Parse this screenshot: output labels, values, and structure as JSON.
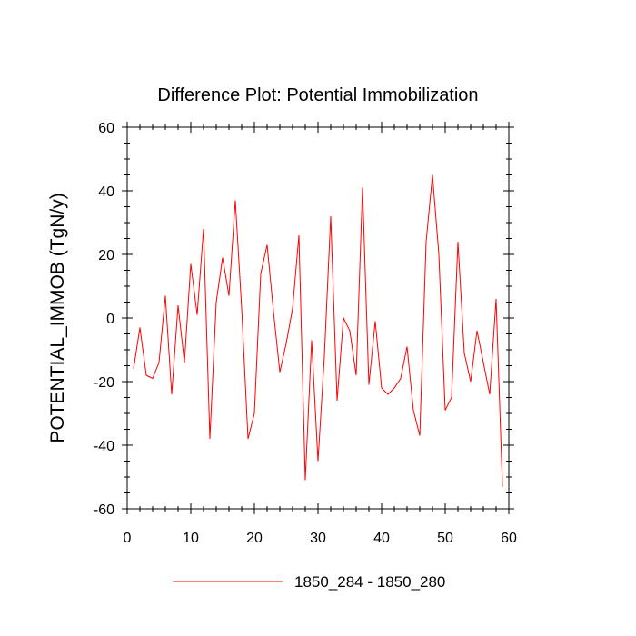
{
  "chart_data": {
    "type": "line",
    "title": "Difference Plot: Potential Immobilization",
    "xlabel": "",
    "ylabel": "POTENTIAL_IMMOB  (TgN/y)",
    "xlim": [
      0,
      60
    ],
    "ylim": [
      -60,
      60
    ],
    "xticks": [
      0,
      10,
      20,
      30,
      40,
      50,
      60
    ],
    "yticks": [
      -60,
      -40,
      -20,
      0,
      20,
      40,
      60
    ],
    "xtick_labels": [
      "0",
      "10",
      "20",
      "30",
      "40",
      "50",
      "60"
    ],
    "ytick_labels": [
      "-60",
      "-40",
      "-20",
      "0",
      "20",
      "40",
      "60"
    ],
    "grid": false,
    "legend_position": "bottom-center",
    "series": [
      {
        "name": "1850_284 - 1850_280",
        "color": "#ff0000",
        "x": [
          1,
          2,
          3,
          4,
          5,
          6,
          7,
          8,
          9,
          10,
          11,
          12,
          13,
          14,
          15,
          16,
          17,
          18,
          19,
          20,
          21,
          22,
          23,
          24,
          25,
          26,
          27,
          28,
          29,
          30,
          31,
          32,
          33,
          34,
          35,
          36,
          37,
          38,
          39,
          40,
          41,
          42,
          43,
          44,
          45,
          46,
          47,
          48,
          49,
          50,
          51,
          52,
          53,
          54,
          55,
          56,
          57,
          58,
          59
        ],
        "values": [
          -16,
          -3,
          -18,
          -19,
          -14,
          7,
          -24,
          4,
          -14,
          17,
          1,
          28,
          -38,
          5,
          19,
          7,
          37,
          3,
          -38,
          -30,
          14,
          23,
          2,
          -17,
          -8,
          3,
          26,
          -51,
          -7,
          -45,
          -12,
          32,
          -26,
          0,
          -4,
          -18,
          41,
          -21,
          -1,
          -22,
          -24,
          -22,
          -19,
          -9,
          -29,
          -37,
          24,
          45,
          20,
          -29,
          -25,
          24,
          -11,
          -20,
          -4,
          -14,
          -24,
          6,
          -53
        ]
      }
    ]
  }
}
